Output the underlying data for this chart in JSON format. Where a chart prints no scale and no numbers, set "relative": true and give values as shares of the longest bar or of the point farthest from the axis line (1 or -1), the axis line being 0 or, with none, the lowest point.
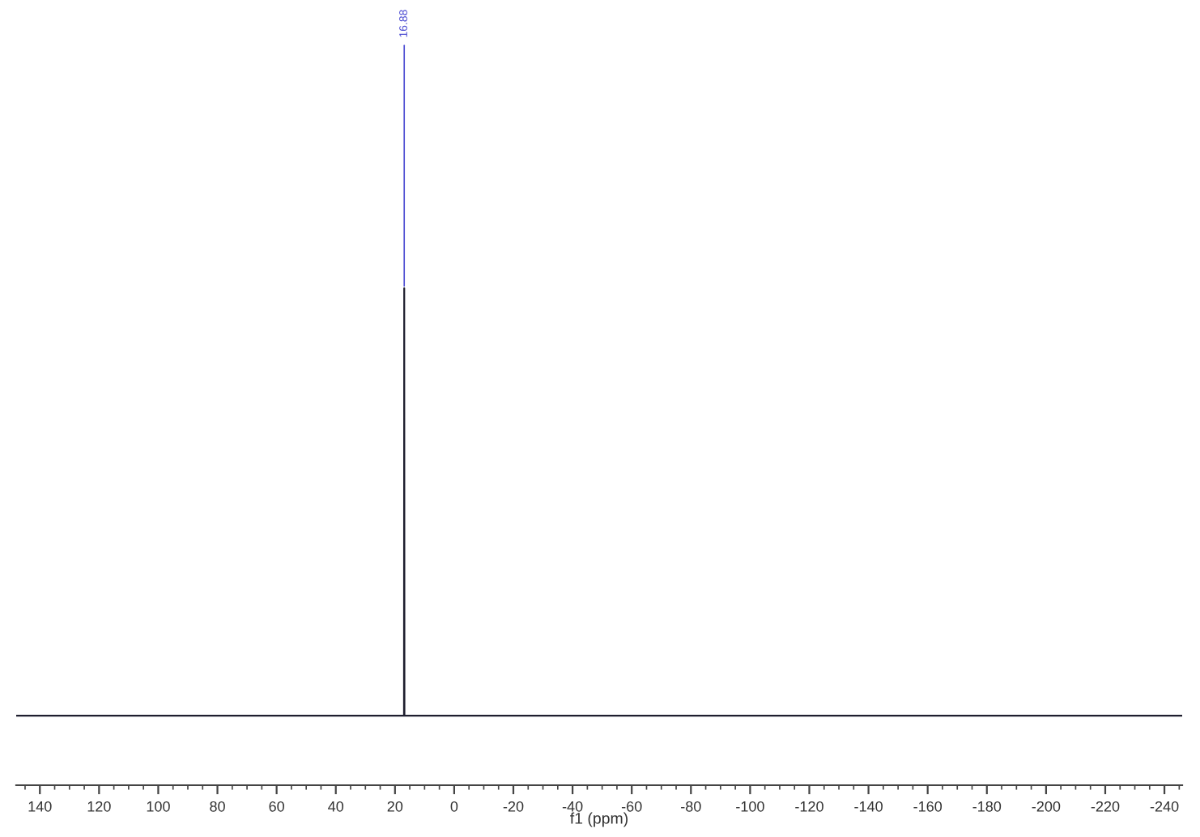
{
  "chart_data": {
    "type": "line",
    "relative": true,
    "xlabel": "f1 (ppm)",
    "series": [
      {
        "color": "#1e1e2e",
        "x": [
          148,
          17.2,
          16.95,
          16.88,
          16.81,
          16.6,
          -246
        ],
        "values": [
          0.14,
          0.14,
          0.14,
          1,
          0.14,
          0.14,
          0.14
        ]
      }
    ],
    "xlim": [
      148,
      -246
    ],
    "xticks": [
      140,
      120,
      100,
      80,
      60,
      40,
      20,
      0,
      -20,
      -40,
      -60,
      -80,
      -100,
      -120,
      -140,
      -160,
      -180,
      -200,
      -220,
      -240
    ],
    "annotations": [
      {
        "text": "16.88",
        "x": 16.88,
        "y": 1
      }
    ],
    "grid": false,
    "legend": false
  }
}
